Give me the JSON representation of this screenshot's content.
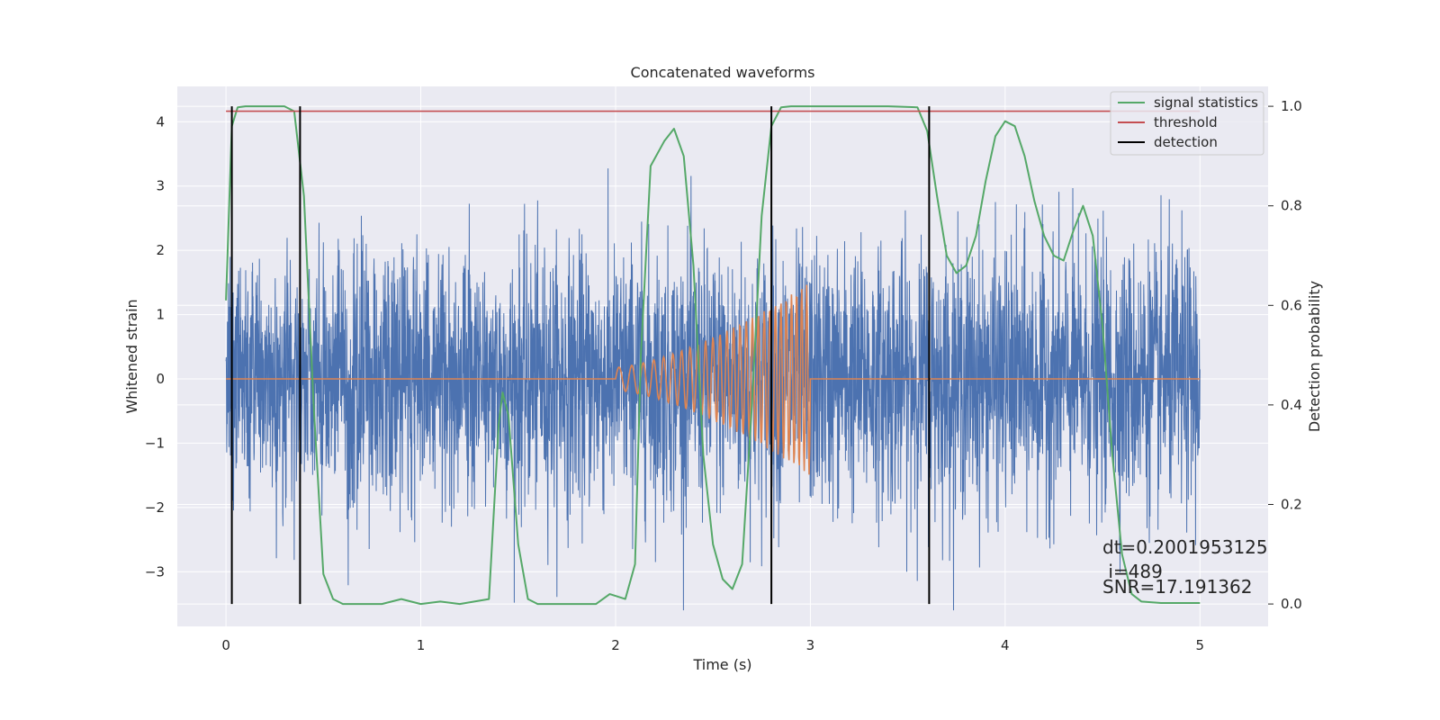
{
  "chart_data": {
    "type": "line",
    "title": "Concatenated waveforms",
    "xlabel": "Time (s)",
    "ylabel": "Whitened strain",
    "ylabel_right": "Detection probability",
    "xlim": [
      -0.25,
      5.35
    ],
    "ylim": [
      -3.85,
      4.55
    ],
    "ylim_right": [
      -0.045,
      1.04
    ],
    "x_ticks": [
      0,
      1,
      2,
      3,
      4,
      5
    ],
    "y_ticks": [
      -3,
      -2,
      -1,
      0,
      1,
      2,
      3,
      4
    ],
    "y_ticks_right": [
      0.0,
      0.2,
      0.4,
      0.6,
      0.8,
      1.0
    ],
    "x_tick_labels": [
      "0",
      "1",
      "2",
      "3",
      "4",
      "5"
    ],
    "y_tick_labels": [
      "−3",
      "−2",
      "−1",
      "0",
      "1",
      "2",
      "3",
      "4"
    ],
    "y_tick_labels_right": [
      "0.0",
      "0.2",
      "0.4",
      "0.6",
      "0.8",
      "1.0"
    ],
    "grid": true,
    "legend_position": "top-right",
    "colors": {
      "noise": "#4c72b0",
      "injected": "#dd8452",
      "signal_statistics": "#55a868",
      "threshold": "#c44e52",
      "detection": "#000000",
      "plot_background": "#eaeaf2",
      "grid": "#ffffff"
    },
    "series": [
      {
        "name": "signal statistics",
        "axis": "right",
        "x": [
          0.0,
          0.03,
          0.06,
          0.1,
          0.2,
          0.3,
          0.35,
          0.4,
          0.45,
          0.5,
          0.55,
          0.6,
          0.7,
          0.8,
          0.9,
          1.0,
          1.1,
          1.2,
          1.35,
          1.4,
          1.42,
          1.45,
          1.5,
          1.55,
          1.6,
          1.7,
          1.9,
          1.97,
          2.05,
          2.1,
          2.13,
          2.18,
          2.25,
          2.3,
          2.35,
          2.4,
          2.45,
          2.5,
          2.55,
          2.6,
          2.65,
          2.7,
          2.75,
          2.8,
          2.85,
          2.9,
          3.0,
          3.2,
          3.4,
          3.55,
          3.6,
          3.65,
          3.7,
          3.75,
          3.8,
          3.85,
          3.9,
          3.95,
          4.0,
          4.05,
          4.1,
          4.15,
          4.2,
          4.25,
          4.3,
          4.35,
          4.4,
          4.45,
          4.5,
          4.55,
          4.6,
          4.65,
          4.7,
          4.8,
          4.9,
          5.0
        ],
        "values": [
          0.61,
          0.96,
          0.998,
          1.0,
          1.0,
          1.0,
          0.99,
          0.82,
          0.4,
          0.06,
          0.01,
          0.0,
          0.0,
          0.0,
          0.01,
          0.0,
          0.005,
          0.0,
          0.01,
          0.36,
          0.425,
          0.38,
          0.12,
          0.01,
          0.0,
          0.0,
          0.0,
          0.02,
          0.01,
          0.08,
          0.5,
          0.88,
          0.93,
          0.955,
          0.9,
          0.68,
          0.3,
          0.12,
          0.05,
          0.03,
          0.08,
          0.4,
          0.78,
          0.96,
          0.998,
          1.0,
          1.0,
          1.0,
          1.0,
          0.998,
          0.95,
          0.82,
          0.7,
          0.665,
          0.68,
          0.74,
          0.85,
          0.94,
          0.97,
          0.96,
          0.9,
          0.81,
          0.74,
          0.7,
          0.69,
          0.75,
          0.8,
          0.74,
          0.56,
          0.3,
          0.1,
          0.02,
          0.005,
          0.002,
          0.002,
          0.002
        ]
      },
      {
        "name": "threshold",
        "axis": "right",
        "x": [
          0.0,
          5.0
        ],
        "values": [
          0.99,
          0.99
        ]
      },
      {
        "name": "detection",
        "axis": "right",
        "type": "vline",
        "x": [
          0.03,
          0.38,
          2.8,
          3.61
        ],
        "y_range": [
          0.0,
          1.0
        ]
      }
    ],
    "noise_trace": {
      "axis": "left",
      "x_range": [
        0,
        5
      ],
      "amplitude_range": [
        -3.6,
        4.2
      ],
      "description_sigma": 1.0
    },
    "injected_waveform": {
      "axis": "left",
      "x_start": 2.0,
      "x_end": 3.0,
      "peak_amplitude": 1.5
    },
    "annotations": [
      "dt=0.2001953125",
      " i=489",
      "SNR=17.191362"
    ]
  }
}
